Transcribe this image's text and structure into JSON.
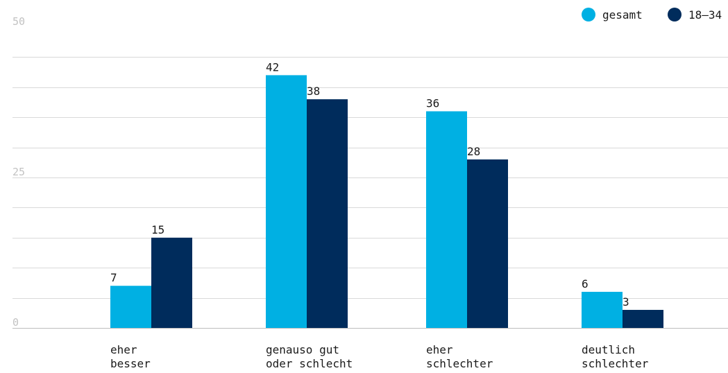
{
  "chart_data": {
    "type": "bar",
    "categories": [
      [
        "eher",
        "besser"
      ],
      [
        "genauso gut",
        "oder schlecht"
      ],
      [
        "eher",
        "schlechter"
      ],
      [
        "deutlich",
        "schlechter"
      ]
    ],
    "series": [
      {
        "name": "gesamt",
        "color": "#00b0e3",
        "values": [
          7,
          42,
          36,
          6
        ]
      },
      {
        "name": "18–34",
        "color": "#002c5c",
        "values": [
          15,
          38,
          28,
          3
        ]
      }
    ],
    "ylim": [
      0,
      50
    ],
    "yticks": [
      0,
      25,
      50
    ],
    "grid": true,
    "legend": "top-right"
  }
}
